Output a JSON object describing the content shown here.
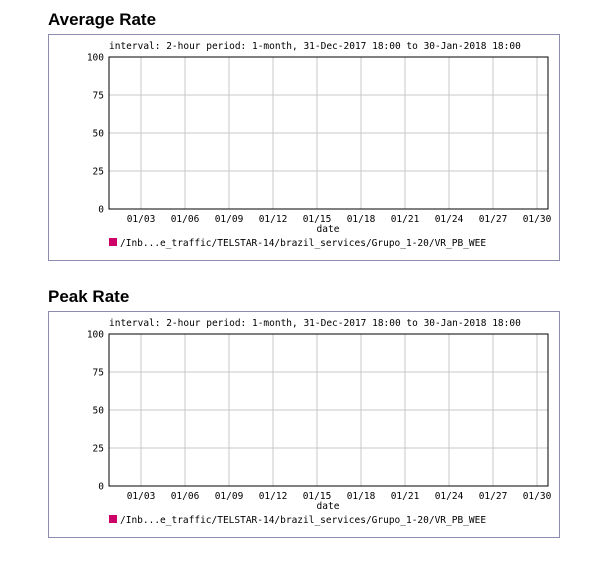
{
  "panels": [
    {
      "title": "Average Rate",
      "info": "interval: 2-hour  period: 1-month, 31-Dec-2017 18:00 to 30-Jan-2018 18:00",
      "legend_label": "/Inb...e_traffic/TELSTAR-14/brazil_services/Grupo_1-20/VR_PB_WEE"
    },
    {
      "title": "Peak Rate",
      "info": "interval: 2-hour  period: 1-month, 31-Dec-2017 18:00 to 30-Jan-2018 18:00",
      "legend_label": "/Inb...e_traffic/TELSTAR-14/brazil_services/Grupo_1-20/VR_PB_WEE"
    }
  ],
  "colors": {
    "series": "#cc0066",
    "grid": "#c8c8c8",
    "frame_border": "#8c8cb0"
  },
  "chart_data": [
    {
      "type": "line",
      "xlabel": "date",
      "ylabel": "",
      "x_ticks": [
        "01/03",
        "01/06",
        "01/09",
        "01/12",
        "01/15",
        "01/18",
        "01/21",
        "01/24",
        "01/27",
        "01/30"
      ],
      "y_ticks": [
        0,
        25,
        50,
        75,
        100
      ],
      "ylim": [
        0,
        100
      ],
      "grid": true,
      "legend_position": "bottom-left",
      "series": [
        {
          "name": "/Inb...e_traffic/TELSTAR-14/brazil_services/Grupo_1-20/VR_PB_WEE",
          "values": []
        }
      ]
    },
    {
      "type": "line",
      "xlabel": "date",
      "ylabel": "",
      "x_ticks": [
        "01/03",
        "01/06",
        "01/09",
        "01/12",
        "01/15",
        "01/18",
        "01/21",
        "01/24",
        "01/27",
        "01/30"
      ],
      "y_ticks": [
        0,
        25,
        50,
        75,
        100
      ],
      "ylim": [
        0,
        100
      ],
      "grid": true,
      "legend_position": "bottom-left",
      "series": [
        {
          "name": "/Inb...e_traffic/TELSTAR-14/brazil_services/Grupo_1-20/VR_PB_WEE",
          "values": []
        }
      ]
    }
  ]
}
